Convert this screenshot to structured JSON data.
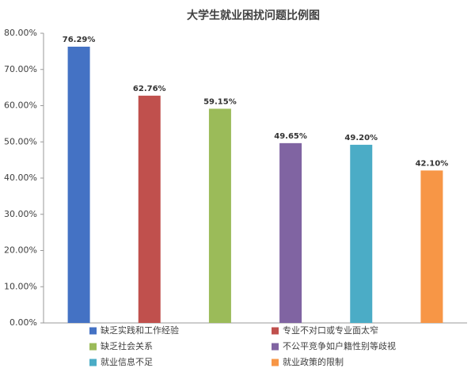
{
  "chart_data": {
    "type": "bar",
    "title": "大学生就业困扰问题比例图",
    "series": [
      {
        "name": "缺乏实践和工作经验",
        "color": "#4472c4",
        "values": [
          76.29
        ],
        "value_labels": [
          "76.29%"
        ]
      },
      {
        "name": "专业不对口或专业面太窄",
        "color": "#c0504d",
        "values": [
          62.76
        ],
        "value_labels": [
          "62.76%"
        ]
      },
      {
        "name": "缺乏社会关系",
        "color": "#9bbb59",
        "values": [
          59.15
        ],
        "value_labels": [
          "59.15%"
        ]
      },
      {
        "name": "不公平竞争如户籍性别等歧视",
        "color": "#8064a2",
        "values": [
          49.65
        ],
        "value_labels": [
          "49.65%"
        ]
      },
      {
        "name": "就业信息不足",
        "color": "#4bacc6",
        "values": [
          49.2
        ],
        "value_labels": [
          "49.20%"
        ]
      },
      {
        "name": "就业政策的限制",
        "color": "#f79646",
        "values": [
          42.1
        ],
        "value_labels": [
          "42.10%"
        ]
      }
    ],
    "ylim": [
      0,
      80
    ],
    "yticks": [
      {
        "value": 0,
        "label": "0.00%"
      },
      {
        "value": 10,
        "label": "10.00%"
      },
      {
        "value": 20,
        "label": "20.00%"
      },
      {
        "value": 30,
        "label": "30.00%"
      },
      {
        "value": 40,
        "label": "40.00%"
      },
      {
        "value": 50,
        "label": "50.00%"
      },
      {
        "value": 60,
        "label": "60.00%"
      },
      {
        "value": 70,
        "label": "70.00%"
      },
      {
        "value": 80,
        "label": "80.00%"
      }
    ],
    "grid": false,
    "legend": "bottom"
  }
}
